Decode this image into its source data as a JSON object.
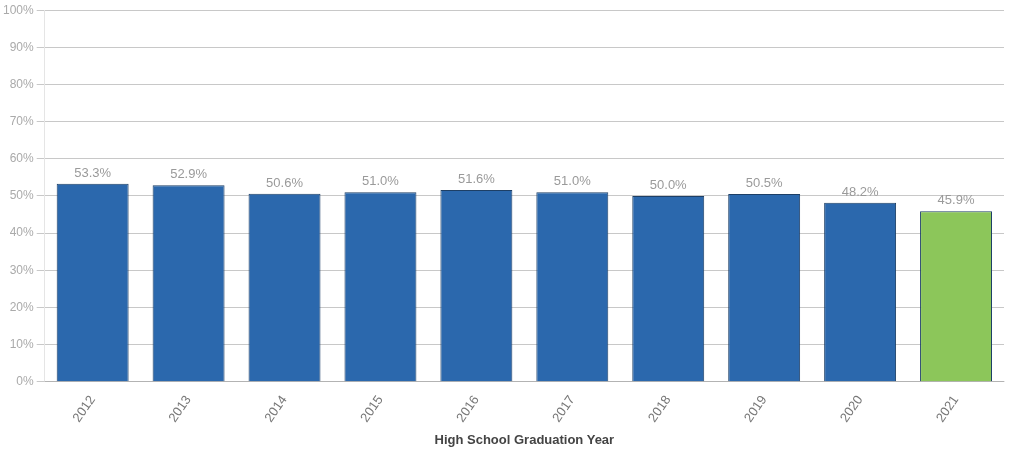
{
  "chart_data": {
    "type": "bar",
    "xlabel": "High School Graduation Year",
    "categories": [
      "2012",
      "2013",
      "2014",
      "2015",
      "2016",
      "2017",
      "2018",
      "2019",
      "2020",
      "2021"
    ],
    "values": [
      53.3,
      52.9,
      50.6,
      51.0,
      51.6,
      51.0,
      50.0,
      50.5,
      48.2,
      45.9
    ],
    "colors": [
      "#2b68ad",
      "#2b68ad",
      "#2b68ad",
      "#2b68ad",
      "#2b68ad",
      "#2b68ad",
      "#2b68ad",
      "#2b68ad",
      "#2b68ad",
      "#8cc65a"
    ],
    "value_labels": [
      "53.3%",
      "52.9%",
      "50.6%",
      "51.0%",
      "51.6%",
      "51.0%",
      "50.0%",
      "50.5%",
      "48.2%",
      "45.9%"
    ],
    "ylim": [
      0,
      100
    ],
    "yticks": [
      {
        "value": 0,
        "label": "0%"
      },
      {
        "value": 10,
        "label": "10%"
      },
      {
        "value": 20,
        "label": "20%"
      },
      {
        "value": 30,
        "label": "30%"
      },
      {
        "value": 40,
        "label": "40%"
      },
      {
        "value": 50,
        "label": "50%"
      },
      {
        "value": 60,
        "label": "60%"
      },
      {
        "value": 70,
        "label": "70%"
      },
      {
        "value": 80,
        "label": "80%"
      },
      {
        "value": 90,
        "label": "90%"
      },
      {
        "value": 100,
        "label": "100%"
      }
    ],
    "grid": "y",
    "legend": false
  }
}
